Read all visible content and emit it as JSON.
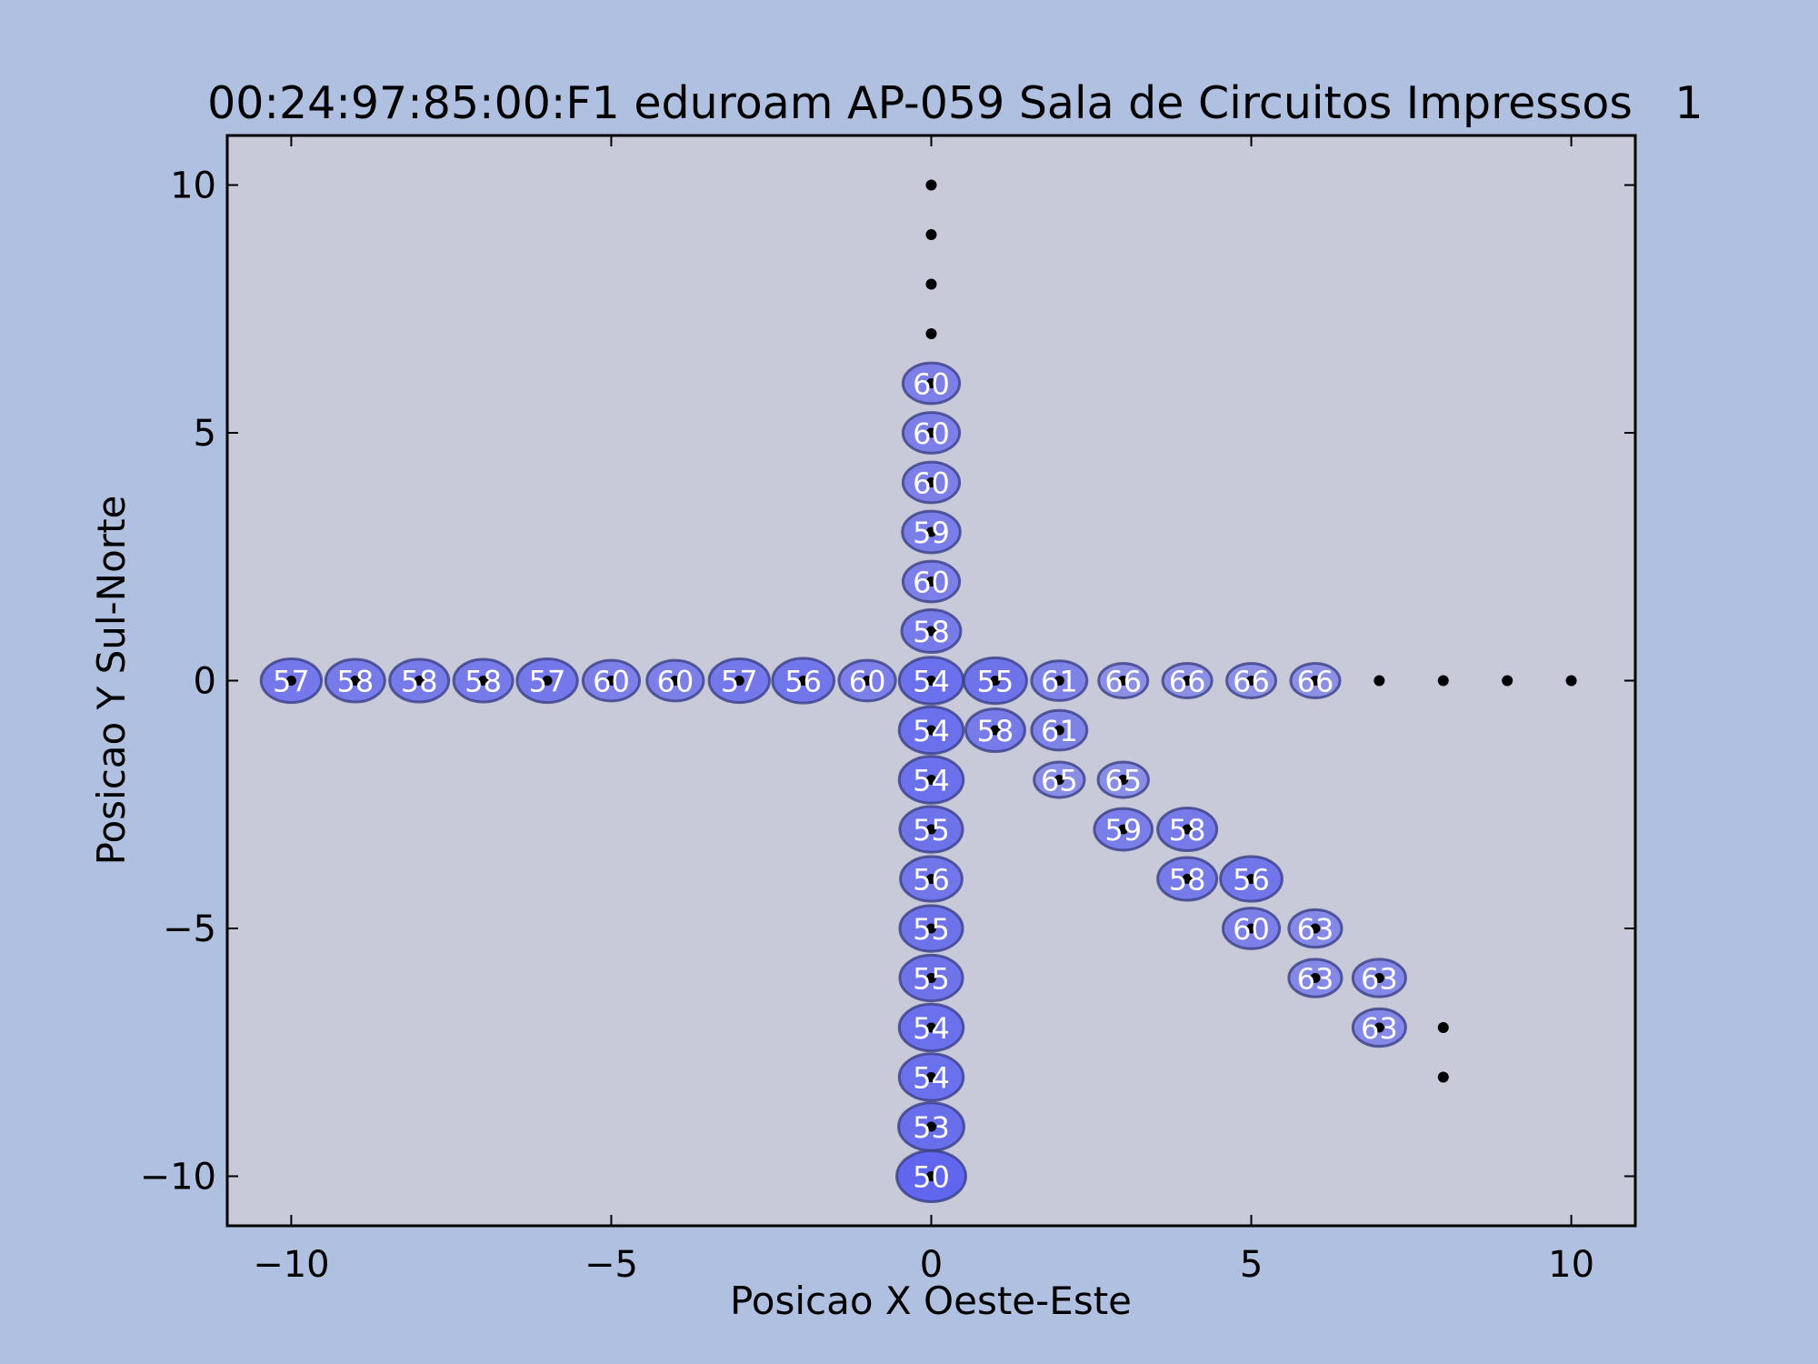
{
  "colors": {
    "page_background": "#b0c0e0",
    "plot_background": "#c8cad9",
    "bubble_fill": "#5b60ee",
    "bubble_edge": "#3a3f86",
    "point_color": "#000000",
    "label_color": "#ffffff"
  },
  "chart_data": {
    "type": "scatter",
    "title": "00:24:97:85:00:F1 eduroam AP-059 Sala de Circuitos Impressos",
    "title_right": "1",
    "xlabel": "Posicao X Oeste-Este",
    "ylabel": "Posicao Y Sul-Norte",
    "xlim": [
      -11,
      11
    ],
    "ylim": [
      -11,
      11
    ],
    "xticks": [
      -10,
      -5,
      0,
      5,
      10
    ],
    "yticks": [
      -10,
      -5,
      0,
      5,
      10
    ],
    "xtick_labels": [
      "−10",
      "−5",
      "0",
      "5",
      "10"
    ],
    "ytick_labels": [
      "−10",
      "−5",
      "0",
      "5",
      "10"
    ],
    "grid": false,
    "legend": "none",
    "measurements": [
      {
        "x": -10,
        "y": 0,
        "value": "57"
      },
      {
        "x": -9,
        "y": 0,
        "value": "58"
      },
      {
        "x": -8,
        "y": 0,
        "value": "58"
      },
      {
        "x": -7,
        "y": 0,
        "value": "58"
      },
      {
        "x": -6,
        "y": 0,
        "value": "57"
      },
      {
        "x": -5,
        "y": 0,
        "value": "60"
      },
      {
        "x": -4,
        "y": 0,
        "value": "60"
      },
      {
        "x": -3,
        "y": 0,
        "value": "57"
      },
      {
        "x": -2,
        "y": 0,
        "value": "56"
      },
      {
        "x": -1,
        "y": 0,
        "value": "60"
      },
      {
        "x": 0,
        "y": 0,
        "value": "54"
      },
      {
        "x": 1,
        "y": 0,
        "value": "55"
      },
      {
        "x": 2,
        "y": 0,
        "value": "61"
      },
      {
        "x": 3,
        "y": 0,
        "value": "66"
      },
      {
        "x": 4,
        "y": 0,
        "value": "66"
      },
      {
        "x": 5,
        "y": 0,
        "value": "66"
      },
      {
        "x": 6,
        "y": 0,
        "value": "66"
      },
      {
        "x": 0,
        "y": 6,
        "value": "60"
      },
      {
        "x": 0,
        "y": 5,
        "value": "60"
      },
      {
        "x": 0,
        "y": 4,
        "value": "60"
      },
      {
        "x": 0,
        "y": 3,
        "value": "59"
      },
      {
        "x": 0,
        "y": 2,
        "value": "60"
      },
      {
        "x": 0,
        "y": 1,
        "value": "58"
      },
      {
        "x": 0,
        "y": -1,
        "value": "54"
      },
      {
        "x": 0,
        "y": -2,
        "value": "54"
      },
      {
        "x": 0,
        "y": -3,
        "value": "55"
      },
      {
        "x": 0,
        "y": -4,
        "value": "56"
      },
      {
        "x": 0,
        "y": -5,
        "value": "55"
      },
      {
        "x": 0,
        "y": -6,
        "value": "55"
      },
      {
        "x": 0,
        "y": -7,
        "value": "54"
      },
      {
        "x": 0,
        "y": -8,
        "value": "54"
      },
      {
        "x": 0,
        "y": -9,
        "value": "53"
      },
      {
        "x": 0,
        "y": -10,
        "value": "50"
      },
      {
        "x": 1,
        "y": -1,
        "value": "58"
      },
      {
        "x": 2,
        "y": -1,
        "value": "61"
      },
      {
        "x": 2,
        "y": -2,
        "value": "65"
      },
      {
        "x": 3,
        "y": -2,
        "value": "65"
      },
      {
        "x": 3,
        "y": -3,
        "value": "59"
      },
      {
        "x": 4,
        "y": -3,
        "value": "58"
      },
      {
        "x": 4,
        "y": -4,
        "value": "58"
      },
      {
        "x": 5,
        "y": -4,
        "value": "56"
      },
      {
        "x": 5,
        "y": -5,
        "value": "60"
      },
      {
        "x": 6,
        "y": -5,
        "value": "63"
      },
      {
        "x": 6,
        "y": -6,
        "value": "63"
      },
      {
        "x": 7,
        "y": -6,
        "value": "63"
      },
      {
        "x": 7,
        "y": -7,
        "value": "63"
      }
    ],
    "unmeasured_points": [
      {
        "x": 0,
        "y": 10
      },
      {
        "x": 0,
        "y": 9
      },
      {
        "x": 0,
        "y": 8
      },
      {
        "x": 0,
        "y": 7
      },
      {
        "x": 7,
        "y": 0
      },
      {
        "x": 8,
        "y": 0
      },
      {
        "x": 9,
        "y": 0
      },
      {
        "x": 10,
        "y": 0
      },
      {
        "x": 8,
        "y": -7
      },
      {
        "x": 8,
        "y": -8
      }
    ]
  }
}
